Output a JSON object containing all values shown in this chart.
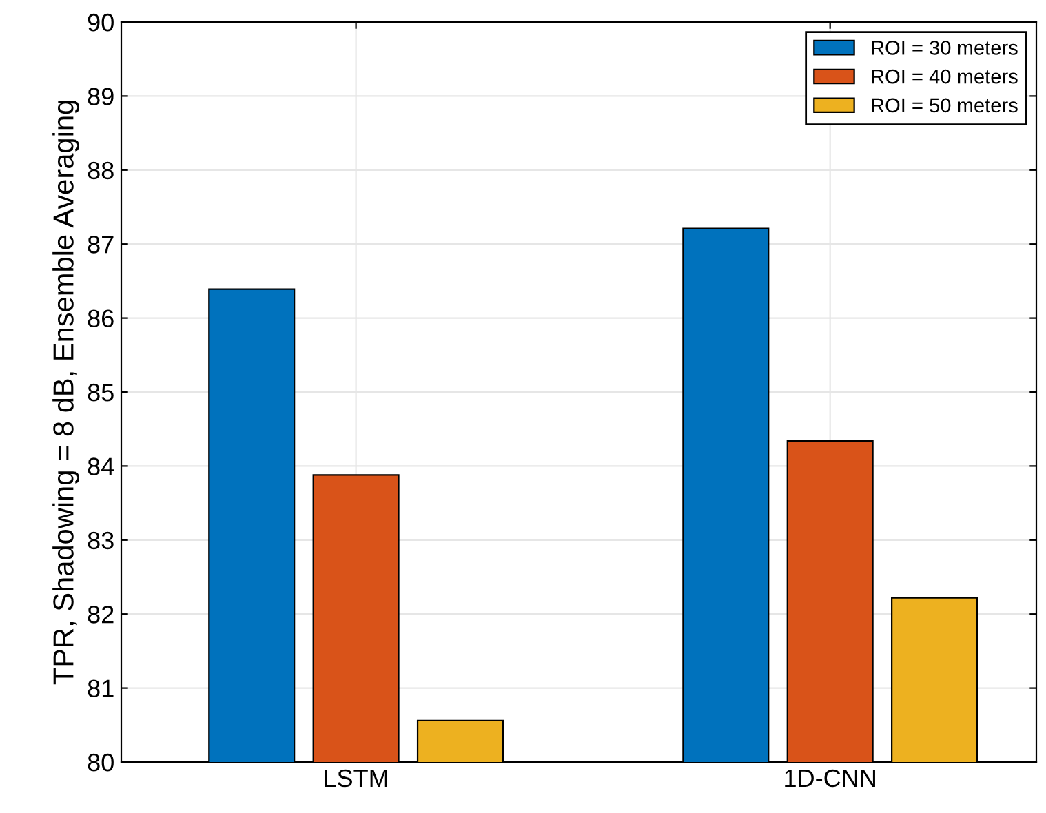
{
  "chart_data": {
    "type": "bar",
    "ylabel": "TPR, Shadowing = 8 dB, Ensemble Averaging",
    "categories": [
      "LSTM",
      "1D-CNN"
    ],
    "series": [
      {
        "name": "ROI = 30 meters",
        "color": "#0072bd",
        "values": [
          86.39,
          87.21
        ]
      },
      {
        "name": "ROI = 40 meters",
        "color": "#d95319",
        "values": [
          83.88,
          84.34
        ]
      },
      {
        "name": "ROI = 50 meters",
        "color": "#edb120",
        "values": [
          80.56,
          82.22
        ]
      }
    ],
    "ylim": [
      80,
      90
    ],
    "yticks": [
      80,
      81,
      82,
      83,
      84,
      85,
      86,
      87,
      88,
      89,
      90
    ],
    "grid": true,
    "legend": "top right"
  }
}
